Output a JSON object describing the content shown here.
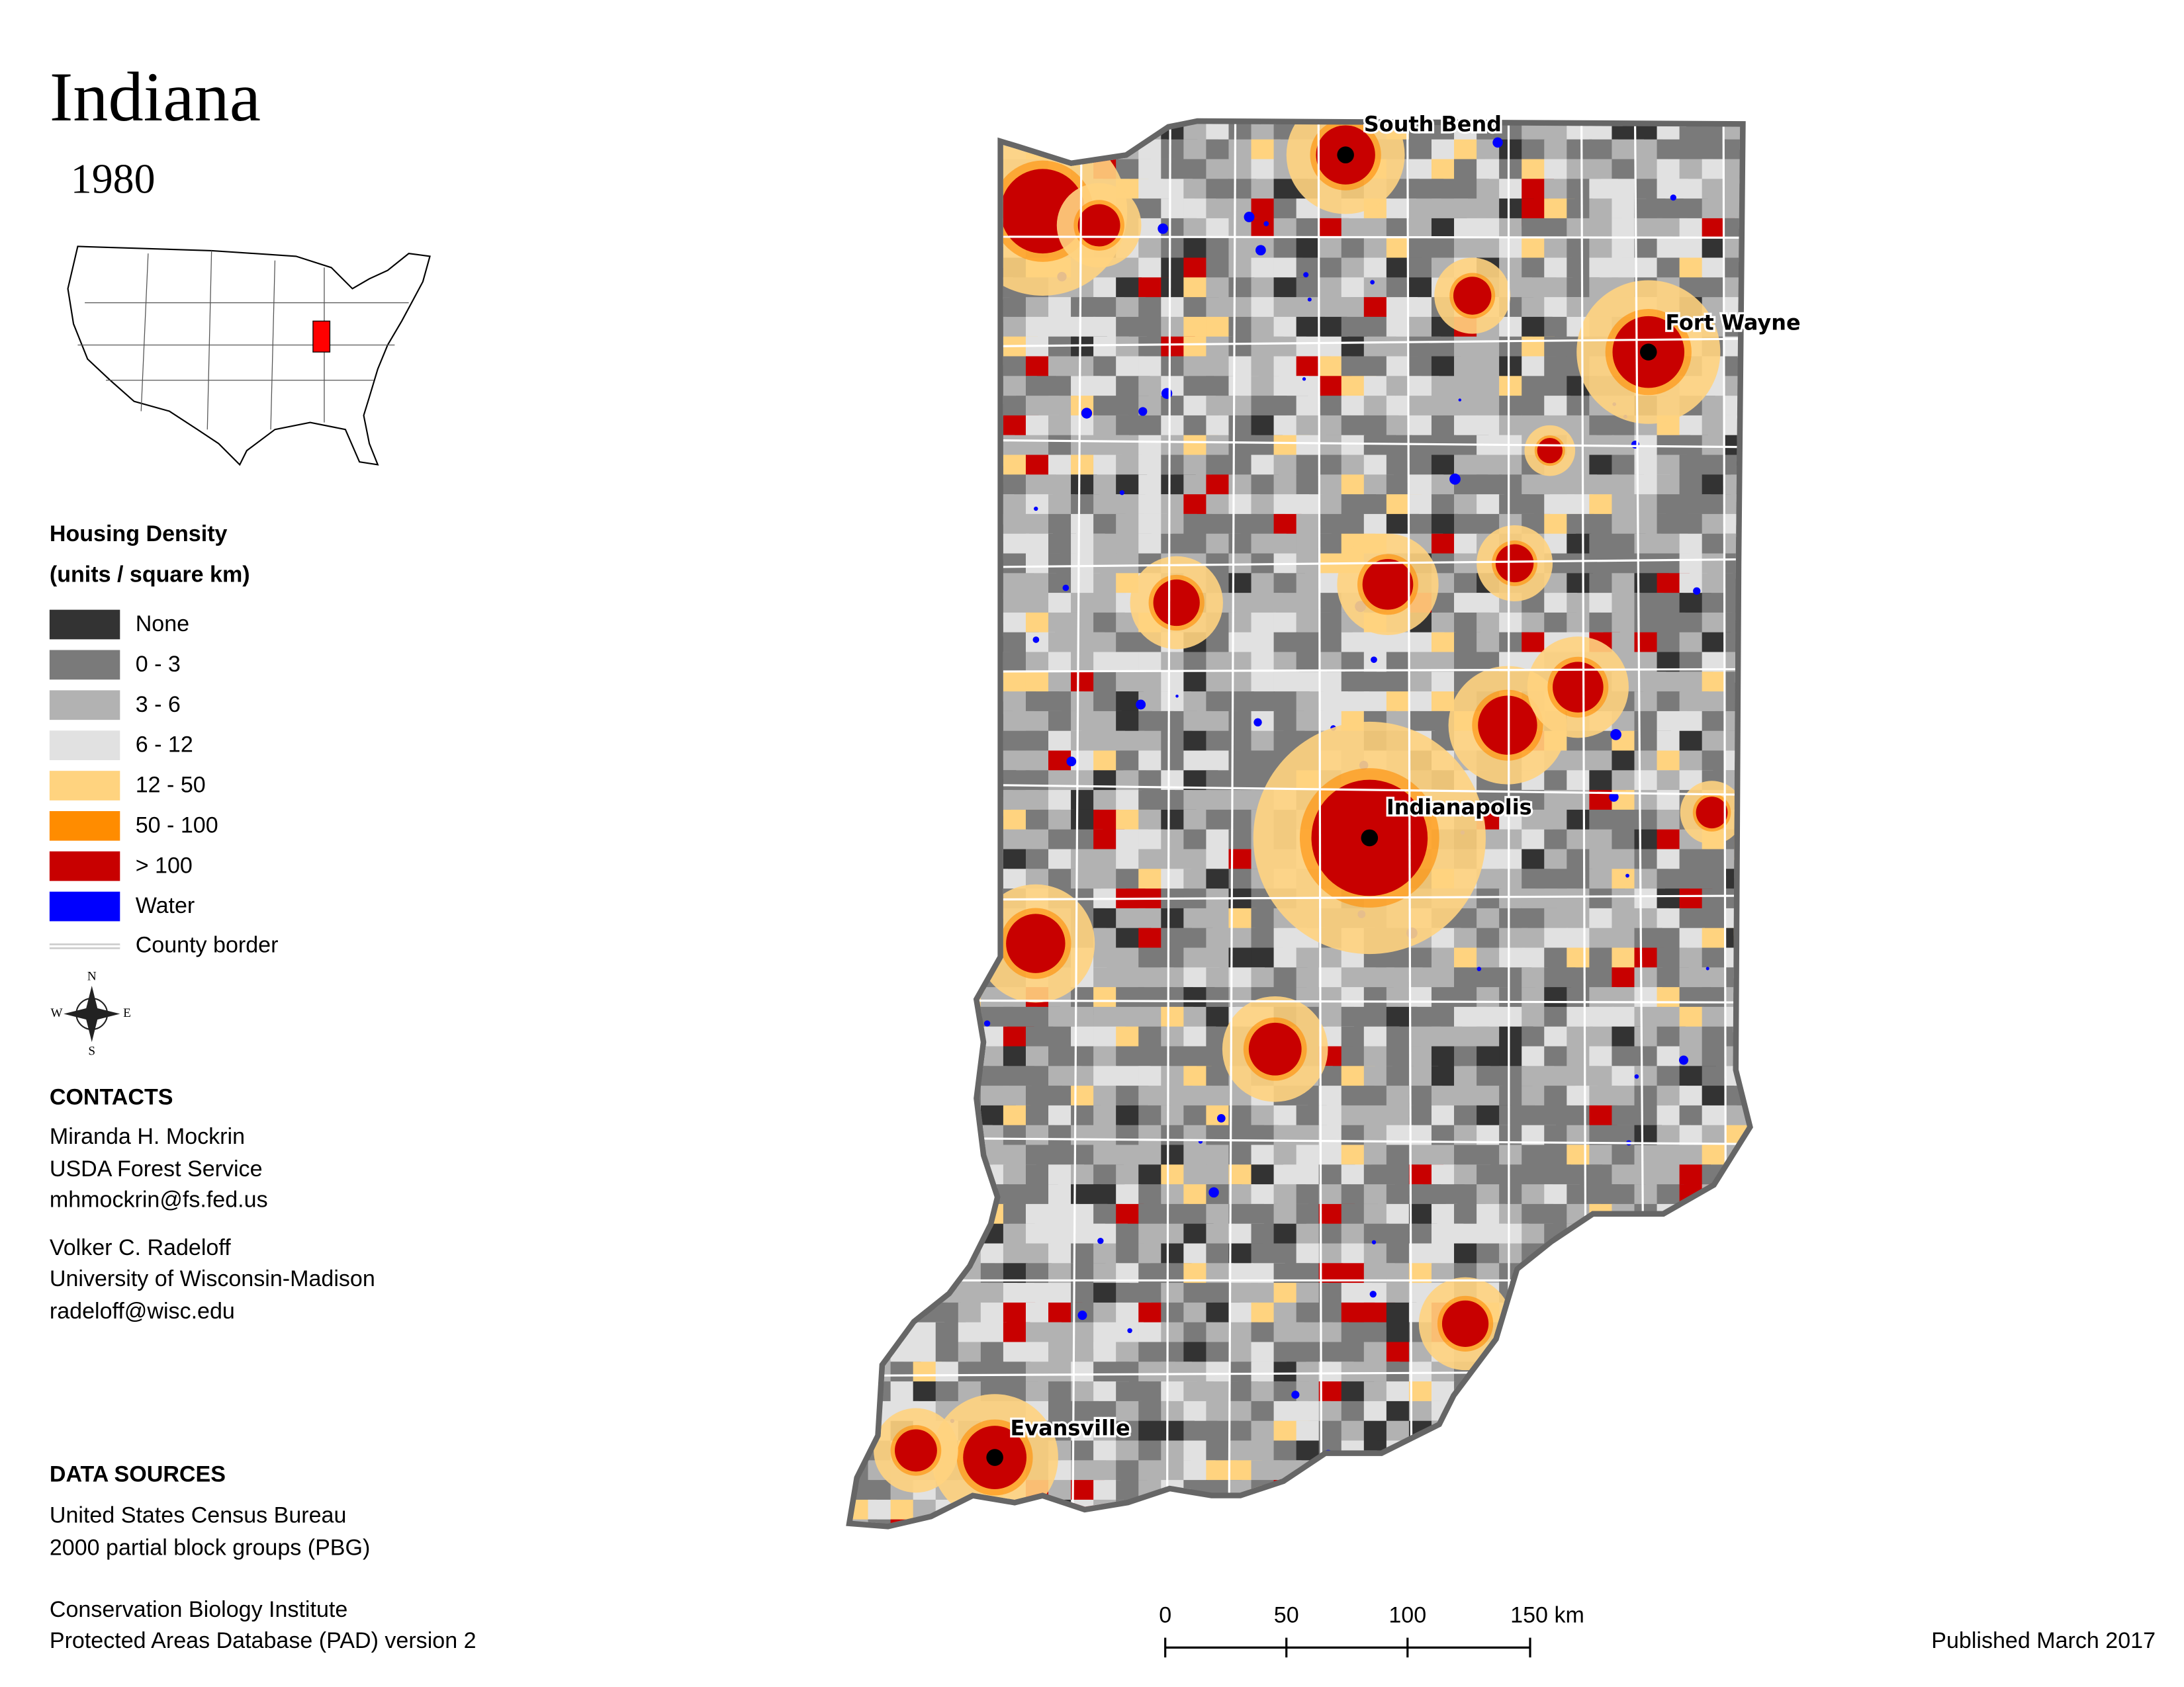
{
  "title": "Indiana",
  "year": "1980",
  "legend": {
    "title": "Housing Density",
    "subtitle": "(units / square km)",
    "items": [
      {
        "label": "None",
        "color": "#333333"
      },
      {
        "label": "0 - 3",
        "color": "#7a7a7a"
      },
      {
        "label": "3 - 6",
        "color": "#b2b2b2"
      },
      {
        "label": "6 - 12",
        "color": "#e1e1e1"
      },
      {
        "label": "12 - 50",
        "color": "#ffd37f"
      },
      {
        "label": "50 - 100",
        "color": "#ff8c00"
      },
      {
        "label": "> 100",
        "color": "#c80000"
      },
      {
        "label": "Water",
        "color": "#0000ff"
      }
    ],
    "county_border": "County border"
  },
  "compass": {
    "n": "N",
    "w": "W",
    "e": "E",
    "s": "S"
  },
  "contacts": {
    "heading": "CONTACTS",
    "people": [
      [
        "Miranda H. Mockrin",
        "USDA Forest Service",
        "mhmockrin@fs.fed.us"
      ],
      [
        "Volker C. Radeloff",
        "University of Wisconsin-Madison",
        "radeloff@wisc.edu"
      ]
    ]
  },
  "data_sources": {
    "heading": "DATA SOURCES",
    "sources": [
      [
        "United States Census Bureau",
        "2000 partial block groups (PBG)"
      ],
      [
        "Conservation Biology Institute",
        "Protected Areas Database (PAD) version 2"
      ]
    ]
  },
  "cities": [
    "South Bend",
    "Fort Wayne",
    "Indianapolis",
    "Evansville"
  ],
  "scale_bar": [
    "0",
    "50",
    "100",
    "150 km"
  ],
  "published": "Published March 2017"
}
